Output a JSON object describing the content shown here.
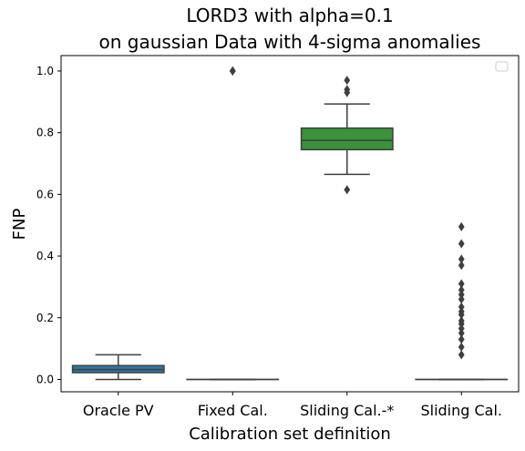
{
  "chart_data": {
    "type": "box",
    "title_line1": "LORD3 with alpha=0.1",
    "title_line2": "on gaussian Data with 4-sigma anomalies",
    "xlabel": "Calibration set definition",
    "ylabel": "FNP",
    "ylim": [
      -0.04,
      1.05
    ],
    "yticks": [
      "0.0",
      "0.2",
      "0.4",
      "0.6",
      "0.8",
      "1.0"
    ],
    "legend": "top-right",
    "grid": false,
    "categories": [
      "Oracle PV",
      "Fixed Cal.",
      "Sliding Cal.-*",
      "Sliding Cal."
    ],
    "boxes": [
      {
        "color": "#3274a1",
        "q1": 0.022,
        "median": 0.032,
        "q3": 0.045,
        "whisker_low": 0.0,
        "whisker_high": 0.08,
        "outliers": []
      },
      {
        "color": "#e1812c",
        "q1": 0.0,
        "median": 0.0,
        "q3": 0.0,
        "whisker_low": 0.0,
        "whisker_high": 0.0,
        "outliers": [
          1.0,
          1.0,
          1.0
        ]
      },
      {
        "color": "#3a923a",
        "q1": 0.745,
        "median": 0.775,
        "q3": 0.815,
        "whisker_low": 0.665,
        "whisker_high": 0.893,
        "outliers": [
          0.93,
          0.94,
          0.97,
          0.615
        ]
      },
      {
        "color": "#c03d3e",
        "q1": 0.0,
        "median": 0.0,
        "q3": 0.0,
        "whisker_low": 0.0,
        "whisker_high": 0.0,
        "outliers": [
          0.495,
          0.44,
          0.39,
          0.37,
          0.31,
          0.29,
          0.275,
          0.26,
          0.235,
          0.22,
          0.21,
          0.19,
          0.18,
          0.165,
          0.15,
          0.13,
          0.105,
          0.08
        ]
      }
    ]
  }
}
